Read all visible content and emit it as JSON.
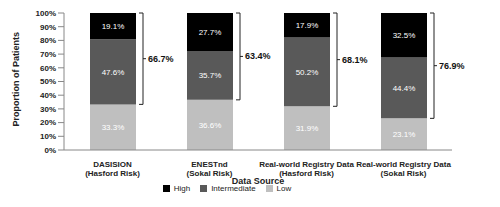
{
  "chart_data": {
    "type": "bar",
    "stacked": true,
    "data_labels": true,
    "grid": false,
    "legend": "bottom",
    "xlabel": "Data Source",
    "ylabel": "Proportion of Patients",
    "categories": [
      "DASISION (Hasford Risk)",
      "ENESTnd (Sokal Risk)",
      "Real-world Registry Data (Hasford Risk)",
      "Real-world Registry Data (Sokal Risk)"
    ],
    "series": [
      {
        "name": "Low",
        "color": "#bfbfbf",
        "values": [
          33.3,
          36.6,
          31.9,
          23.1
        ],
        "value_labels": [
          "33.3%",
          "36.6%",
          "31.9%",
          "23.1%"
        ]
      },
      {
        "name": "Intermediate",
        "color": "#595959",
        "values": [
          47.6,
          35.7,
          50.2,
          44.4
        ],
        "value_labels": [
          "47.6%",
          "35.7%",
          "50.2%",
          "44.4%"
        ]
      },
      {
        "name": "High",
        "color": "#000000",
        "values": [
          19.1,
          27.7,
          17.9,
          32.5
        ],
        "value_labels": [
          "19.1%",
          "27.7%",
          "17.9%",
          "32.5%"
        ]
      }
    ],
    "annotations": [
      {
        "category": "DASISION (Hasford Risk)",
        "value": 66.7,
        "label": "66.7%"
      },
      {
        "category": "ENESTnd (Sokal Risk)",
        "value": 63.4,
        "label": "63.4%"
      },
      {
        "category": "Real-world Registry Data (Hasford Risk)",
        "value": 68.1,
        "label": "68.1%"
      },
      {
        "category": "Real-world Registry Data (Sokal Risk)",
        "value": 76.9,
        "label": "76.9%"
      }
    ],
    "ylim": [
      0,
      100
    ],
    "yticks": [
      {
        "value": 0,
        "label": "0%"
      },
      {
        "value": 10,
        "label": "10%"
      },
      {
        "value": 20,
        "label": "20%"
      },
      {
        "value": 30,
        "label": "30%"
      },
      {
        "value": 40,
        "label": "40%"
      },
      {
        "value": 50,
        "label": "50%"
      },
      {
        "value": 60,
        "label": "60%"
      },
      {
        "value": 70,
        "label": "70%"
      },
      {
        "value": 80,
        "label": "80%"
      },
      {
        "value": 90,
        "label": "90%"
      },
      {
        "value": 100,
        "label": "100%"
      }
    ]
  }
}
